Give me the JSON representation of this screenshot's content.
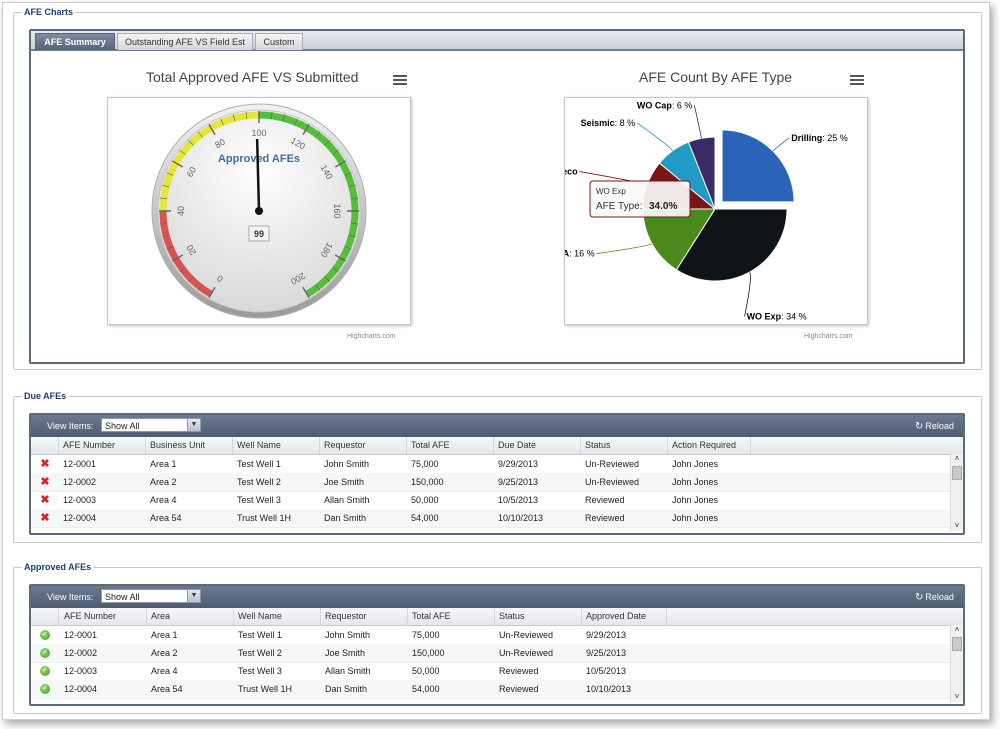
{
  "charts_section": {
    "legend": "AFE Charts",
    "tabs": [
      {
        "label": "AFE Summary",
        "active": true
      },
      {
        "label": "Outstanding AFE VS Field Est",
        "active": false
      },
      {
        "label": "Custom",
        "active": false
      }
    ],
    "gauge": {
      "title": "Total Approved AFE VS Submitted",
      "label": "Approved AFEs",
      "value": 99,
      "value_label": "99",
      "min": 0,
      "max": 200,
      "ticks": [
        "0",
        "20",
        "40",
        "60",
        "80",
        "100",
        "120",
        "140",
        "160",
        "180",
        "200"
      ],
      "bands": [
        {
          "from": 0,
          "to": 40,
          "color": "#d9534f"
        },
        {
          "from": 40,
          "to": 100,
          "color": "#e6e63a"
        },
        {
          "from": 100,
          "to": 200,
          "color": "#55bf3b"
        }
      ],
      "credits": "Highcharts.com"
    },
    "pie": {
      "title": "AFE Count By AFE Type",
      "credits": "Highcharts.com",
      "tooltip": {
        "series": "WO Exp",
        "label": "AFE Type:",
        "value": "34.0%"
      }
    }
  },
  "chart_data": {
    "type": "pie",
    "title": "AFE Count By AFE Type",
    "slices": [
      {
        "name": "Drilling",
        "value": 25,
        "label": "25 %",
        "color": "#2b63b8"
      },
      {
        "name": "WO Exp",
        "value": 34,
        "label": "34 %",
        "color": "#0f1419"
      },
      {
        "name": "P & A",
        "value": 16,
        "label": "16 %",
        "color": "#4a8a1c"
      },
      {
        "name": "Recompletion",
        "value": 11,
        "label": "Reco",
        "color": "#7a1515"
      },
      {
        "name": "Seismic",
        "value": 8,
        "label": "8 %",
        "color": "#1f9bc4"
      },
      {
        "name": "WO Cap",
        "value": 6,
        "label": "6 %",
        "color": "#3a2a66"
      }
    ]
  },
  "due_afes": {
    "legend": "Due AFEs",
    "view_label": "View Items:",
    "view_value": "Show All",
    "reload_label": "Reload",
    "columns": [
      "AFE Number",
      "Business Unit",
      "Well Name",
      "Requestor",
      "Total AFE",
      "Due Date",
      "Status",
      "Action Required"
    ],
    "rows": [
      [
        "12-0001",
        "Area 1",
        "Test Well 1",
        "John Smith",
        "75,000",
        "9/29/2013",
        "Un-Reviewed",
        "John Jones"
      ],
      [
        "12-0002",
        "Area 2",
        "Test Well 2",
        "Joe Smith",
        "150,000",
        "9/25/2013",
        "Un-Reviewed",
        "John Jones"
      ],
      [
        "12-0003",
        "Area 4",
        "Test Well 3",
        "Allan Smith",
        "50,000",
        "10/5/2013",
        "Reviewed",
        "John Jones"
      ],
      [
        "12-0004",
        "Area 54",
        "Trust Well 1H",
        "Dan Smith",
        "54,000",
        "10/10/2013",
        "Reviewed",
        "John Jones"
      ]
    ]
  },
  "approved_afes": {
    "legend": "Approved AFEs",
    "view_label": "View Items:",
    "view_value": "Show All",
    "reload_label": "Reload",
    "columns": [
      "AFE Number",
      "Area",
      "Well Name",
      "Requestor",
      "Total AFE",
      "Status",
      "Approved Date"
    ],
    "rows": [
      [
        "12-0001",
        "Area 1",
        "Test Well 1",
        "John Smith",
        "75,000",
        "Un-Reviewed",
        "9/29/2013"
      ],
      [
        "12-0002",
        "Area 2",
        "Test Well 2",
        "Joe Smith",
        "150,000",
        "Un-Reviewed",
        "9/25/2013"
      ],
      [
        "12-0003",
        "Area 4",
        "Test Well 3",
        "Allan Smith",
        "50,000",
        "Reviewed",
        "10/5/2013"
      ],
      [
        "12-0004",
        "Area 54",
        "Trust Well 1H",
        "Dan Smith",
        "54,000",
        "Reviewed",
        "10/10/2013"
      ]
    ]
  }
}
